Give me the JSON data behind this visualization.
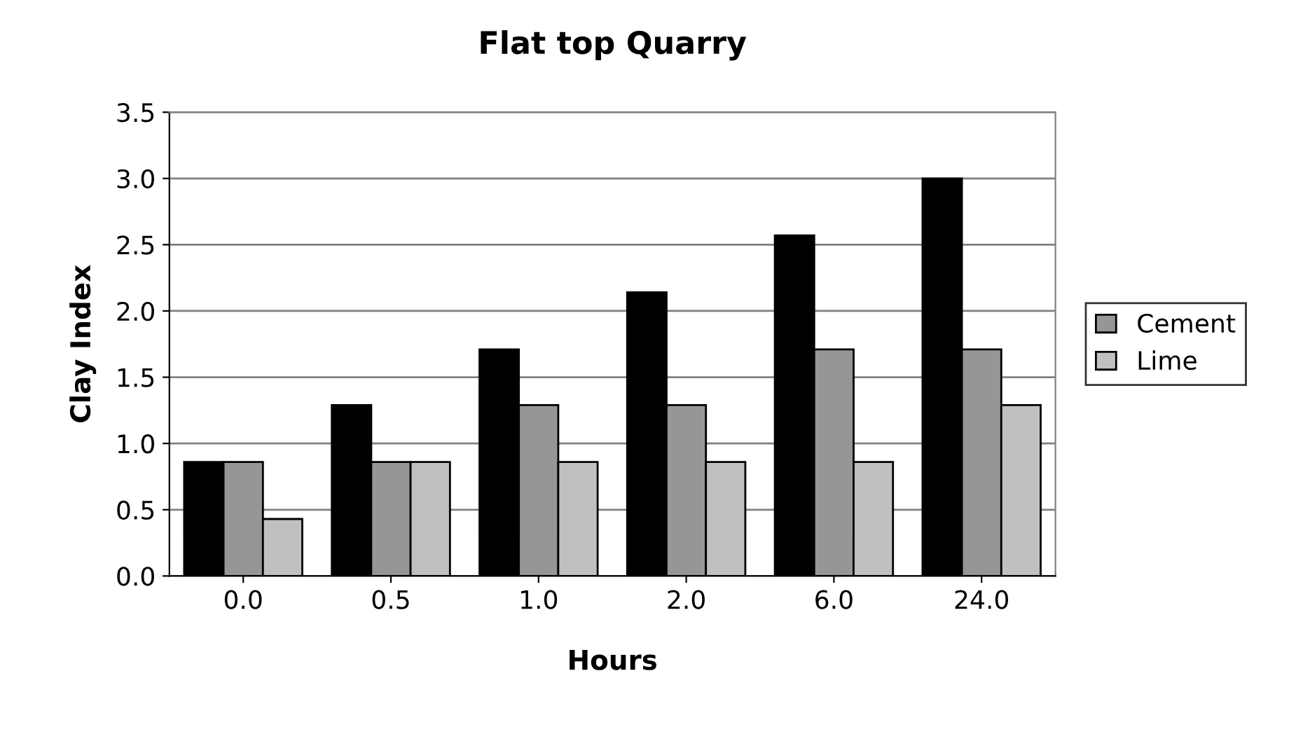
{
  "chart_data": {
    "type": "bar",
    "title": "Flat top Quarry",
    "xlabel": "Hours",
    "ylabel": "Clay Index",
    "categories": [
      "0.0",
      "0.5",
      "1.0",
      "2.0",
      "6.0",
      "24.0"
    ],
    "series": [
      {
        "color": "#000000",
        "values": [
          0.86,
          1.29,
          1.71,
          2.14,
          2.57,
          3.0
        ]
      },
      {
        "name": "Cement",
        "color": "#969696",
        "values": [
          0.86,
          0.86,
          1.29,
          1.29,
          1.71,
          1.71
        ]
      },
      {
        "name": "Lime",
        "color": "#c0c0c0",
        "values": [
          0.43,
          0.86,
          0.86,
          0.86,
          0.86,
          1.29
        ]
      }
    ],
    "ylim": [
      0,
      3.5
    ],
    "yticks": [
      {
        "value": 0,
        "label": "0.0"
      },
      {
        "value": 0.5,
        "label": "0.5"
      },
      {
        "value": 1,
        "label": "1.0"
      },
      {
        "value": 1.5,
        "label": "1.5"
      },
      {
        "value": 2,
        "label": "2.0"
      },
      {
        "value": 2.5,
        "label": "2.5"
      },
      {
        "value": 3,
        "label": "3.0"
      },
      {
        "value": 3.5,
        "label": "3.5"
      }
    ],
    "grid": "y",
    "legend": "right"
  }
}
